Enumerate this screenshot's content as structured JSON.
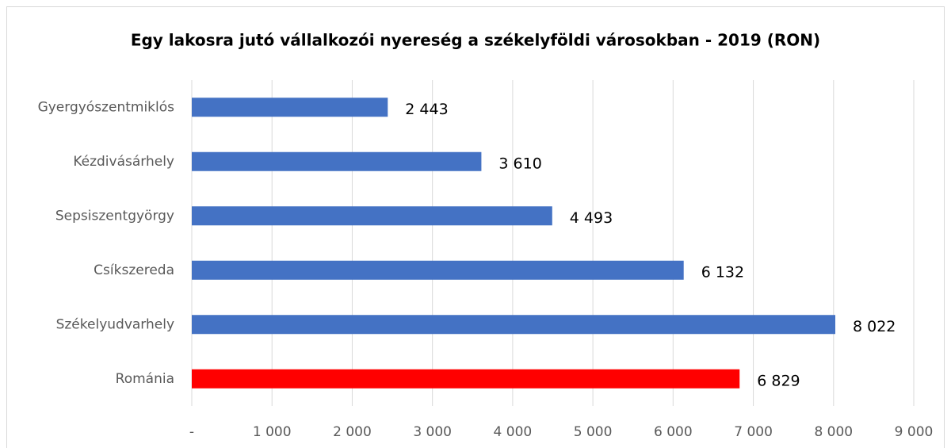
{
  "chart_data": {
    "type": "barh",
    "title": "Egy lakosra jutó vállalkozói nyereség a székelyföldi városokban - 2019 (RON)",
    "categories": [
      "Gyergyószentmiklós",
      "Kézdivásárhely",
      "Sepsiszentgyörgy",
      "Csíkszereda",
      "Székelyudvarhely",
      "Románia"
    ],
    "values": [
      2443,
      3610,
      4493,
      6132,
      8022,
      6829
    ],
    "value_labels": [
      "2 443",
      "3 610",
      "4 493",
      "6 132",
      "8 022",
      "6 829"
    ],
    "colors": [
      "#4472c4",
      "#4472c4",
      "#4472c4",
      "#4472c4",
      "#4472c4",
      "#ff0000"
    ],
    "xlim": [
      0,
      9000
    ],
    "xticks": [
      {
        "value": 0,
        "label": "-"
      },
      {
        "value": 1000,
        "label": "1 000"
      },
      {
        "value": 2000,
        "label": "2 000"
      },
      {
        "value": 3000,
        "label": "3 000"
      },
      {
        "value": 4000,
        "label": "4 000"
      },
      {
        "value": 5000,
        "label": "5 000"
      },
      {
        "value": 6000,
        "label": "6 000"
      },
      {
        "value": 7000,
        "label": "7 000"
      },
      {
        "value": 8000,
        "label": "8 000"
      },
      {
        "value": 9000,
        "label": "9 000"
      }
    ],
    "grid": true
  }
}
